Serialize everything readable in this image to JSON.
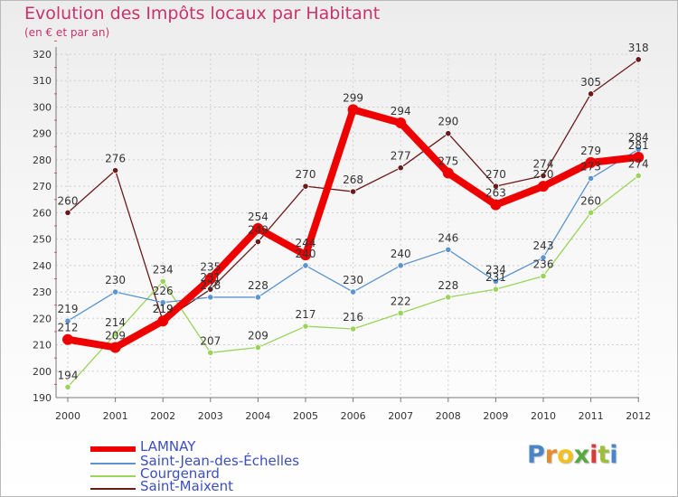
{
  "title": "Evolution des Impôts locaux par Habitant",
  "subtitle": "(en € et par an)",
  "logo": {
    "letters": [
      "P",
      "r",
      "o",
      "x",
      "i",
      "t",
      "i"
    ],
    "colors": [
      "#4a86c7",
      "#e98b2a",
      "#f2c21b",
      "#58a93e",
      "#d93a3a",
      "#9dbe3a",
      "#4a86c7"
    ]
  },
  "chart_data": {
    "type": "line",
    "title": "Evolution des Impôts locaux par Habitant",
    "subtitle": "(en € et par an)",
    "xlabel": "",
    "ylabel": "",
    "x": [
      "2000",
      "2001",
      "2002",
      "2003",
      "2004",
      "2005",
      "2006",
      "2007",
      "2008",
      "2009",
      "2010",
      "2011",
      "2012"
    ],
    "ylim": [
      190,
      320
    ],
    "yticks": [
      190,
      200,
      210,
      220,
      230,
      240,
      250,
      260,
      270,
      280,
      290,
      300,
      310,
      320
    ],
    "grid": true,
    "legend_position": "bottom-left",
    "series": [
      {
        "name": "Saint-Maixent",
        "color": "#6b1a1a",
        "width": "thin",
        "values": [
          260,
          276,
          219,
          231,
          249,
          270,
          268,
          277,
          290,
          270,
          274,
          305,
          318
        ],
        "labels": [
          "260",
          "276",
          "219",
          "231",
          "249",
          "270",
          "268",
          "277",
          "290",
          "270",
          "274",
          "305",
          "318"
        ]
      },
      {
        "name": "Courgenard",
        "color": "#9ad45a",
        "width": "thin",
        "values": [
          194,
          214,
          234,
          207,
          209,
          217,
          216,
          222,
          228,
          231,
          236,
          260,
          274
        ],
        "labels": [
          "194",
          "214",
          "234",
          "207",
          "209",
          "217",
          "216",
          "222",
          "228",
          "231",
          "236",
          "260",
          "274"
        ]
      },
      {
        "name": "Saint-Jean-des-Échelles",
        "color": "#5b94cf",
        "width": "thin",
        "values": [
          219,
          230,
          226,
          228,
          228,
          240,
          230,
          240,
          246,
          234,
          243,
          273,
          284
        ],
        "labels": [
          "219",
          "230",
          "226",
          "228",
          "228",
          "240",
          "230",
          "240",
          "246",
          "234",
          "243",
          "273",
          "284"
        ]
      },
      {
        "name": "LAMNAY",
        "color": "#ee0000",
        "width": "thick",
        "values": [
          212,
          209,
          219,
          235,
          254,
          244,
          299,
          294,
          275,
          263,
          270,
          279,
          281
        ],
        "labels": [
          "212",
          "209",
          "219",
          "235",
          "254",
          "244",
          "299",
          "294",
          "275",
          "263",
          "270",
          "279",
          "281"
        ]
      }
    ],
    "legend": [
      "LAMNAY",
      "Saint-Jean-des-Échelles",
      "Courgenard",
      "Saint-Maixent"
    ]
  }
}
